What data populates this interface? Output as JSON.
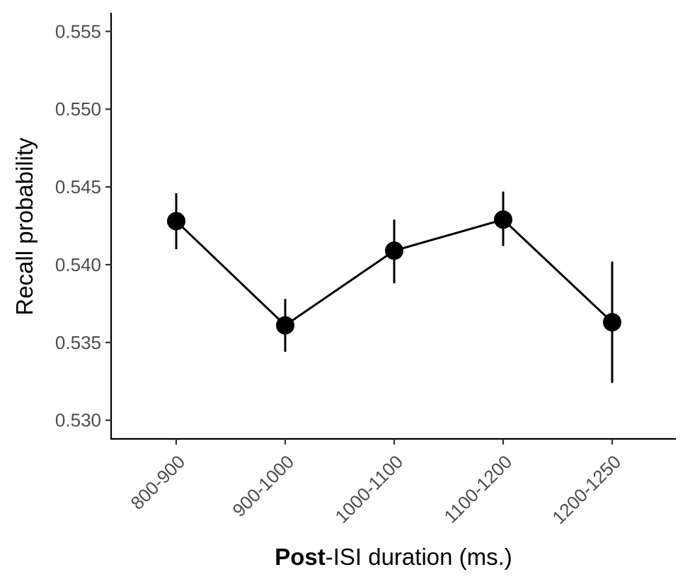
{
  "chart_data": {
    "type": "line",
    "xlabel_bold": "Post",
    "xlabel_rest": "-ISI duration (ms.)",
    "ylabel": "Recall probability",
    "categories": [
      "800-900",
      "900-1000",
      "1000-1100",
      "1100-1200",
      "1200-1250"
    ],
    "series": [
      {
        "values": [
          0.5428,
          0.5361,
          0.5409,
          0.5429,
          0.5363
        ],
        "error_low": [
          0.541,
          0.5344,
          0.5388,
          0.5412,
          0.5324
        ],
        "error_high": [
          0.5446,
          0.5378,
          0.5429,
          0.5447,
          0.5402
        ]
      }
    ],
    "ylim": [
      0.5288,
      0.5562
    ],
    "yticks": [
      0.53,
      0.535,
      0.54,
      0.545,
      0.55,
      0.555
    ],
    "ytick_labels": [
      "0.530",
      "0.535",
      "0.540",
      "0.545",
      "0.550",
      "0.555"
    ],
    "grid": false,
    "legend": "none",
    "colors": {
      "series": "#000000",
      "tick_text": "#4d4d4d"
    }
  }
}
